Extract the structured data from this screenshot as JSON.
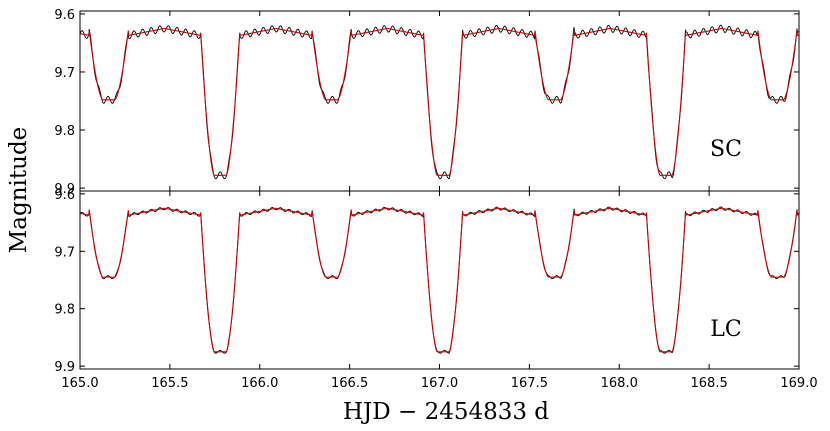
{
  "colors": {
    "observed": "#000000",
    "model": "#cc0000"
  },
  "chart_data": {
    "type": "line",
    "xlabel": "HJD − 2454833 d",
    "ylabel": "Magnitude",
    "xlim": [
      165.0,
      169.0
    ],
    "x_ticks": [
      165.0,
      165.5,
      166.0,
      166.5,
      167.0,
      167.5,
      168.0,
      168.5,
      169.0
    ],
    "x_tick_labels": [
      "165.0",
      "165.5",
      "166.0",
      "166.5",
      "167.0",
      "167.5",
      "168.0",
      "168.5",
      "169.0"
    ],
    "y_inverted": true,
    "grid": false,
    "panels": [
      {
        "label": "SC",
        "ylim": [
          9.595,
          9.905
        ],
        "y_ticks": [
          9.6,
          9.7,
          9.8,
          9.9
        ],
        "y_tick_labels": [
          "9.6",
          "9.7",
          "9.8",
          "9.9"
        ],
        "series": [
          {
            "role": "observed",
            "color": "#000000",
            "model": {
              "baseline": 9.625,
              "primary_minima": [
                165.78,
                167.02,
                168.26
              ],
              "primary_depth": 9.878,
              "secondary_minima": [
                165.16,
                166.4,
                167.64,
                168.88
              ],
              "secondary_depth": 9.748,
              "eclipse_halfwidth_days": 0.11,
              "oscillation_amplitude": 0.006,
              "oscillation_period_days": 0.048
            }
          },
          {
            "role": "model",
            "color": "#cc0000",
            "model": {
              "baseline": 9.625,
              "primary_minima": [
                165.78,
                167.02,
                168.26
              ],
              "primary_depth": 9.878,
              "secondary_minima": [
                165.16,
                166.4,
                167.64,
                168.88
              ],
              "secondary_depth": 9.748,
              "eclipse_halfwidth_days": 0.11,
              "oscillation_amplitude": 0.0,
              "oscillation_period_days": 0.048
            }
          }
        ]
      },
      {
        "label": "LC",
        "ylim": [
          9.595,
          9.905
        ],
        "y_ticks": [
          9.6,
          9.7,
          9.8,
          9.9
        ],
        "y_tick_labels": [
          "9.6",
          "9.7",
          "9.8",
          "9.9"
        ],
        "series": [
          {
            "role": "observed",
            "color": "#000000",
            "model": {
              "baseline": 9.625,
              "primary_minima": [
                165.78,
                167.02,
                168.26
              ],
              "primary_depth": 9.875,
              "secondary_minima": [
                165.16,
                166.4,
                167.64,
                168.88
              ],
              "secondary_depth": 9.745,
              "eclipse_halfwidth_days": 0.11,
              "oscillation_amplitude": 0.0025,
              "oscillation_period_days": 0.048
            }
          },
          {
            "role": "model",
            "color": "#cc0000",
            "model": {
              "baseline": 9.625,
              "primary_minima": [
                165.78,
                167.02,
                168.26
              ],
              "primary_depth": 9.875,
              "secondary_minima": [
                165.16,
                166.4,
                167.64,
                168.88
              ],
              "secondary_depth": 9.745,
              "eclipse_halfwidth_days": 0.11,
              "oscillation_amplitude": 0.0,
              "oscillation_period_days": 0.048
            }
          }
        ]
      }
    ]
  }
}
